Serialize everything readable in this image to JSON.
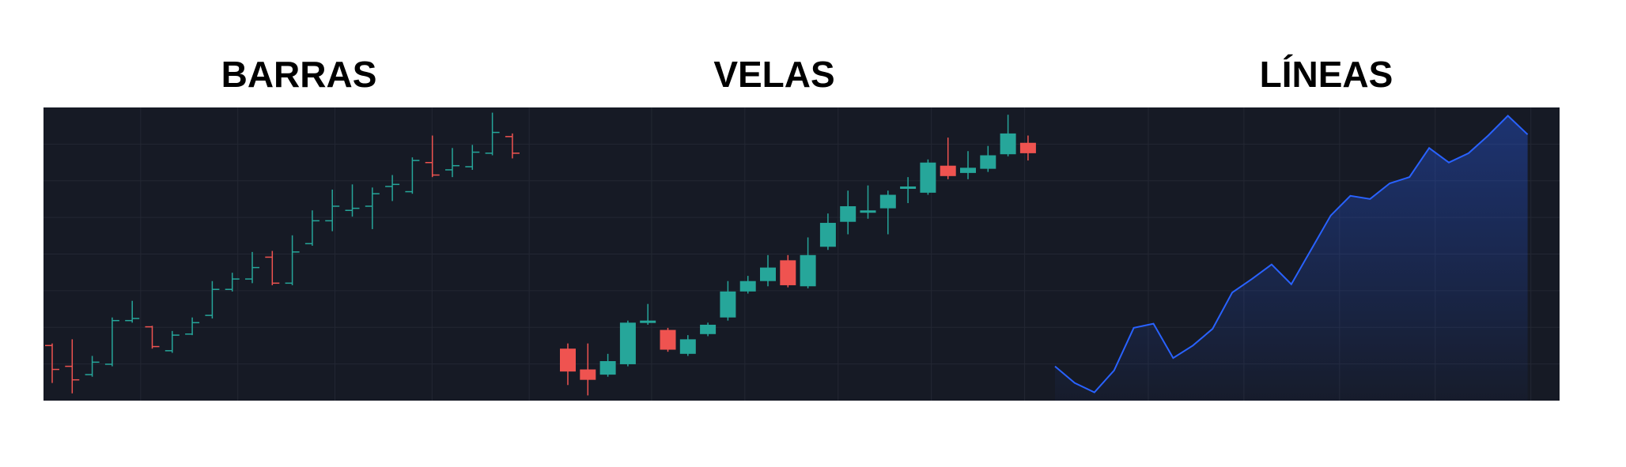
{
  "chart_data": [
    {
      "type": "ohlc",
      "title": "BARRAS",
      "up_color": "#26a69a",
      "down_color": "#ef5350",
      "ylim": [
        0,
        282
      ],
      "open": [
        53,
        33,
        25,
        35,
        77,
        71,
        48,
        64,
        82,
        107,
        117,
        138,
        113,
        151,
        173,
        183,
        187,
        206,
        201,
        229,
        222,
        225,
        238,
        254
      ],
      "high": [
        55,
        59,
        43,
        80,
        96,
        72,
        67,
        80,
        115,
        123,
        143,
        144,
        159,
        183,
        203,
        208,
        205,
        217,
        234,
        255,
        243,
        246,
        277,
        257
      ],
      "low": [
        17,
        7,
        23,
        33,
        75,
        50,
        46,
        63,
        79,
        105,
        113,
        111,
        111,
        149,
        163,
        177,
        165,
        192,
        199,
        215,
        215,
        222,
        236,
        233
      ],
      "close": [
        30,
        20,
        37,
        77,
        79,
        52,
        63,
        75,
        107,
        117,
        128,
        113,
        143,
        173,
        187,
        185,
        199,
        208,
        231,
        217,
        226,
        239,
        258,
        238
      ]
    },
    {
      "type": "candlestick",
      "title": "VELAS",
      "up_color": "#26a69a",
      "down_color": "#ef5350",
      "ylim": [
        0,
        282
      ],
      "open": [
        50,
        30,
        25,
        35,
        75,
        68,
        45,
        64,
        80,
        105,
        115,
        135,
        110,
        148,
        172,
        181,
        185,
        205,
        200,
        226,
        219,
        223,
        237,
        248
      ],
      "high": [
        55,
        55,
        45,
        77,
        93,
        70,
        63,
        75,
        115,
        120,
        140,
        140,
        157,
        180,
        202,
        207,
        202,
        215,
        232,
        253,
        240,
        245,
        275,
        255
      ],
      "low": [
        15,
        5,
        23,
        33,
        73,
        47,
        43,
        62,
        77,
        103,
        110,
        109,
        108,
        145,
        160,
        175,
        160,
        190,
        198,
        213,
        213,
        220,
        235,
        231
      ],
      "close": [
        28,
        20,
        38,
        75,
        77,
        49,
        59,
        73,
        105,
        115,
        128,
        111,
        140,
        171,
        187,
        183,
        198,
        206,
        229,
        216,
        224,
        236,
        257,
        238
      ]
    },
    {
      "type": "line",
      "title": "LÍNEAS",
      "color": "#2962ff",
      "ylim": [
        0,
        282
      ],
      "values": [
        33,
        17,
        8,
        29,
        70,
        74,
        41,
        53,
        69,
        104,
        117,
        131,
        112,
        145,
        178,
        197,
        194,
        209,
        215,
        243,
        229,
        238,
        255,
        274,
        256
      ]
    }
  ]
}
